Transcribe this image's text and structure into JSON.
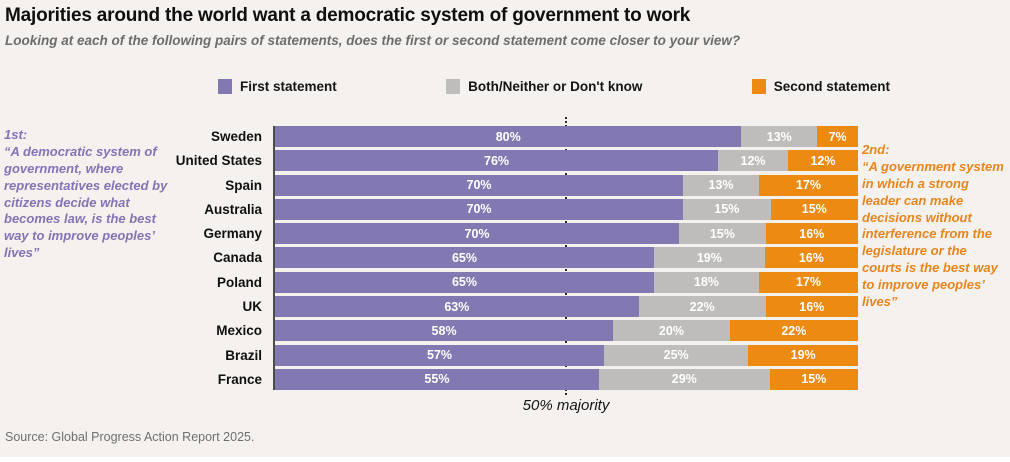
{
  "header": {
    "title": "Majorities around the world want a democratic system of government to work",
    "subtitle": "Looking at each of the following pairs of statements, does the first or second statement come closer to your view?"
  },
  "legend": [
    {
      "label": "First statement",
      "color": "#8279b2"
    },
    {
      "label": "Both/Neither or Don't know",
      "color": "#bebdbb"
    },
    {
      "label": "Second statement",
      "color": "#ec8a11"
    }
  ],
  "annotations": {
    "first": {
      "heading": "1st:",
      "text": "“A democratic system of government, where representatives elected by citizens decide what becomes law, is the best way to improve peoples’ lives”",
      "color": "#8374b5"
    },
    "second": {
      "heading": "2nd:",
      "text": "“A government system in which a strong leader can make decisions without interference from the legislature or the courts is the best way to improve peoples’ lives”",
      "color": "#e8851c"
    }
  },
  "chart_data": {
    "type": "bar",
    "stacked": true,
    "orientation": "horizontal",
    "categories": [
      "Sweden",
      "United States",
      "Spain",
      "Australia",
      "Germany",
      "Canada",
      "Poland",
      "UK",
      "Mexico",
      "Brazil",
      "France"
    ],
    "series": [
      {
        "name": "First statement",
        "color": "#8279b2",
        "values": [
          80,
          76,
          70,
          70,
          70,
          65,
          65,
          63,
          58,
          57,
          55
        ]
      },
      {
        "name": "Both/Neither or Don't know",
        "color": "#bebdbb",
        "values": [
          13,
          12,
          13,
          15,
          15,
          19,
          18,
          22,
          20,
          25,
          29
        ]
      },
      {
        "name": "Second statement",
        "color": "#ec8a11",
        "values": [
          7,
          12,
          17,
          15,
          16,
          16,
          17,
          16,
          22,
          19,
          15
        ]
      }
    ],
    "value_suffix": "%",
    "xlim": [
      0,
      100
    ],
    "grid": false,
    "legend_position": "top",
    "reference_line": {
      "value": 50,
      "label": "50% majority"
    }
  },
  "footer": {
    "source": "Source: Global Progress Action Report 2025."
  }
}
